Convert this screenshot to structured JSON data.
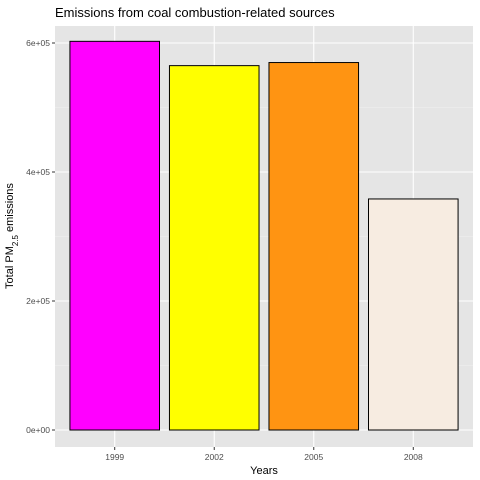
{
  "chart_data": {
    "type": "bar",
    "title": "Emissions from coal combustion-related sources",
    "xlabel": "Years",
    "ylabel_main": "Total PM",
    "ylabel_sub": "2.5",
    "ylabel_tail": " emissions",
    "categories": [
      "1999",
      "2002",
      "2005",
      "2008"
    ],
    "values": [
      602600,
      564900,
      569700,
      358200
    ],
    "colors": [
      "#ff00ff",
      "#ffff00",
      "#ff9412",
      "#f7ece1"
    ],
    "ylim": [
      0,
      620000
    ],
    "yticks": [
      0,
      200000,
      400000,
      600000
    ],
    "ytick_labels": [
      "0e+00",
      "2e+05",
      "4e+05",
      "6e+05"
    ],
    "background": "#e5e5e5",
    "grid": true,
    "legend": "none"
  }
}
